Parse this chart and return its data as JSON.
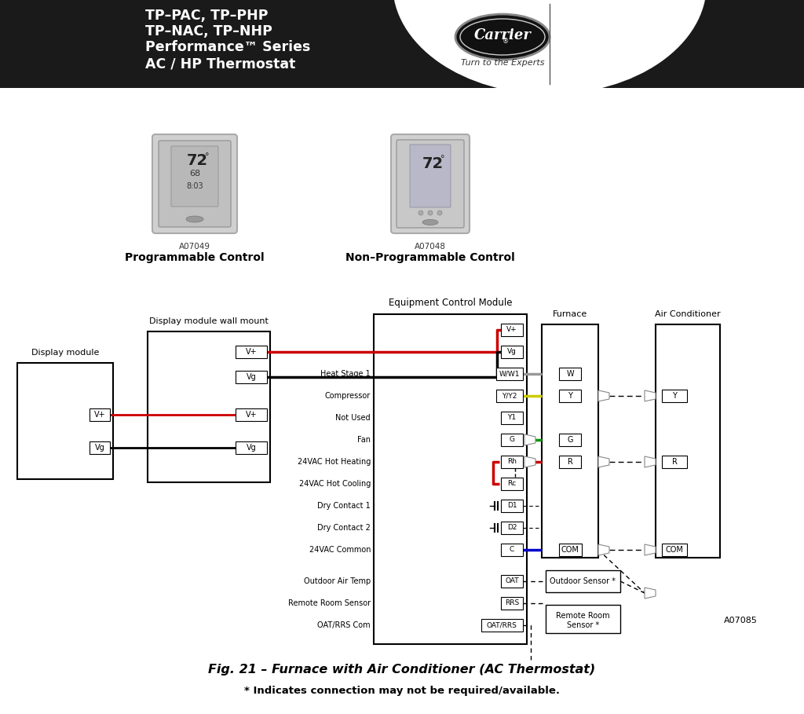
{
  "bg_color": "#ffffff",
  "header_bg": "#1a1a1a",
  "header_text_color": "#ffffff",
  "header_lines": [
    "TP–PAC, TP–PHP",
    "TP–NAC, TP–NHP",
    "Performance™ Series",
    "AC / HP Thermostat"
  ],
  "carrier_text": "Carrier",
  "carrier_sub": "Turn to the Experts",
  "prog_label": "A07049",
  "prog_name": "Programmable Control",
  "nonprog_label": "A07048",
  "nonprog_name": "Non–Programmable Control",
  "ecm_title": "Equipment Control Module",
  "furnace_title": "Furnace",
  "ac_title": "Air Conditioner",
  "display_module_label": "Display module",
  "display_wall_label": "Display module wall mount",
  "red": "#cc0000",
  "black": "#000000",
  "gray": "#999999",
  "yellow": "#cccc00",
  "green": "#009900",
  "blue": "#0000cc",
  "fig_caption": "Fig. 21 – Furnace with Air Conditioner (AC Thermostat)",
  "fig_note": "* Indicates connection may not be required/available.",
  "a07085": "A07085",
  "sensor_box1": "Outdoor Sensor *",
  "sensor_box2": "Remote Room\nSensor *"
}
